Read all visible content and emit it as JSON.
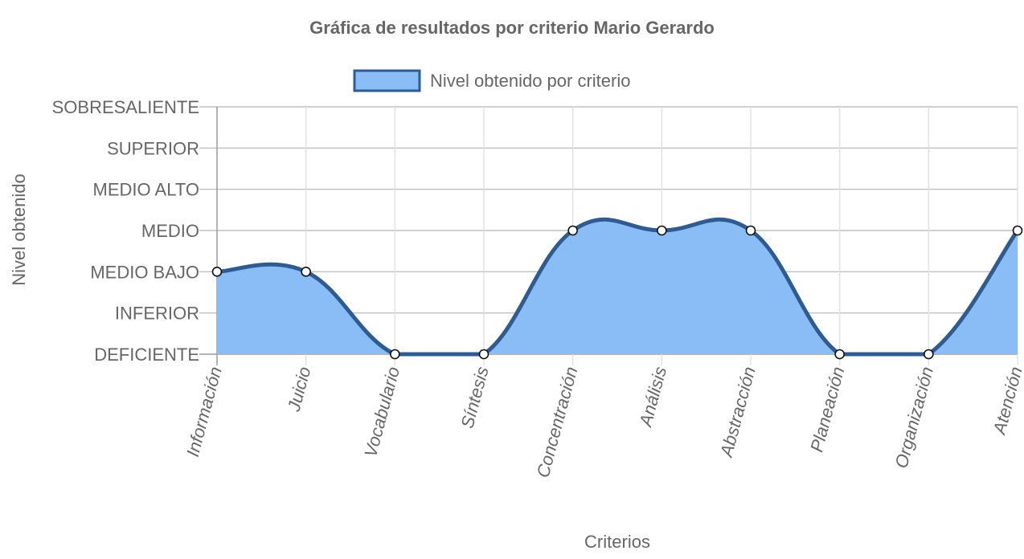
{
  "chart_data": {
    "type": "area",
    "title": "Gráfica de resultados por criterio Mario Gerardo",
    "xlabel": "Criterios",
    "ylabel": "Nivel obtenido",
    "categories": [
      "Información",
      "Juicio",
      "Vocabulario",
      "Síntesis",
      "Concentración",
      "Análisis",
      "Abstracción",
      "Planeación",
      "Organización",
      "Atención"
    ],
    "y_levels": [
      "DEFICIENTE",
      "INFERIOR",
      "MEDIO BAJO",
      "MEDIO",
      "MEDIO ALTO",
      "SUPERIOR",
      "SOBRESALIENTE"
    ],
    "ylim": [
      0,
      6
    ],
    "grid": true,
    "legend_position": "top",
    "series": [
      {
        "name": "Nivel obtenido por criterio",
        "values": [
          2,
          2,
          0,
          0,
          3,
          3,
          3,
          0,
          0,
          3
        ],
        "fill_color": "#8abcf6",
        "line_color": "#2e5c91",
        "point_fill": "#ffffff",
        "point_stroke": "#111111"
      }
    ]
  }
}
